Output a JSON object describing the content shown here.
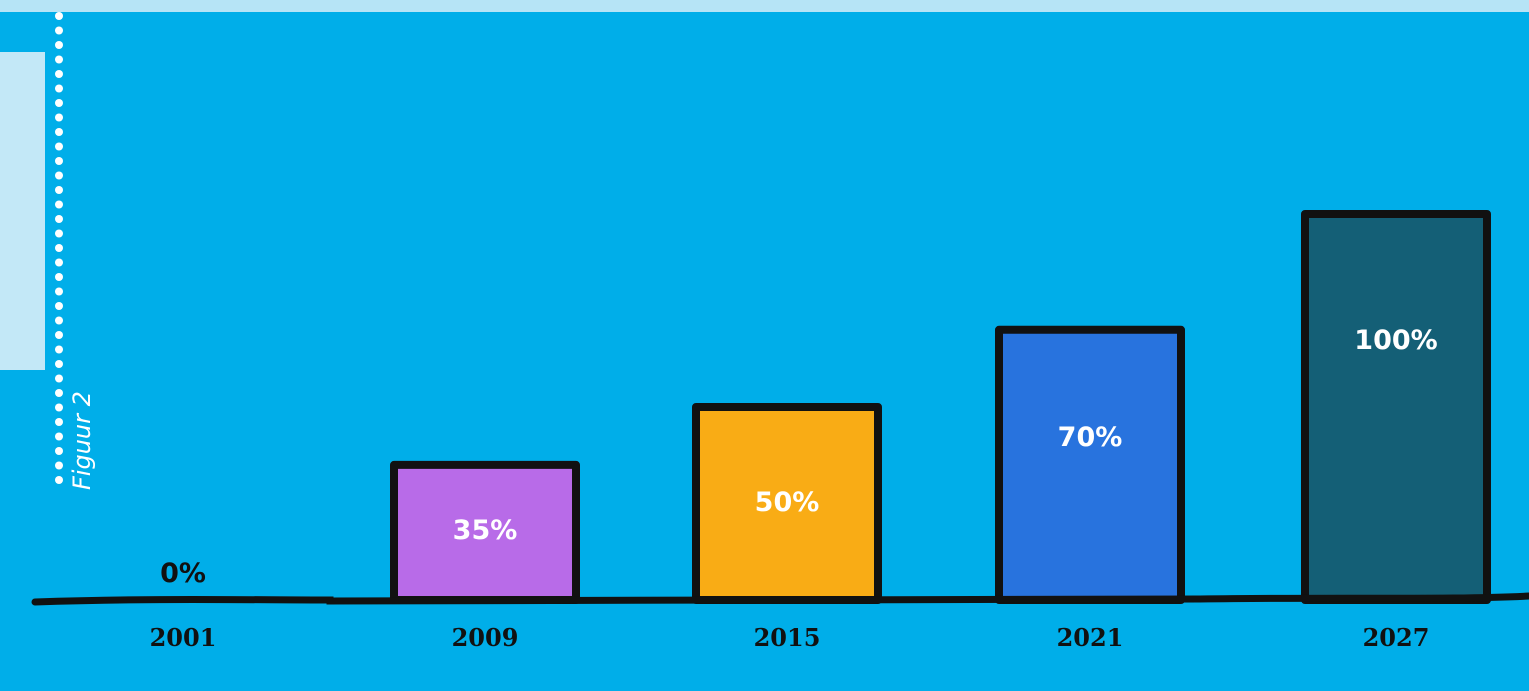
{
  "figure_label": "Figuur 2",
  "chart_data": {
    "type": "bar",
    "categories": [
      "2001",
      "2009",
      "2015",
      "2021",
      "2027"
    ],
    "values": [
      0,
      35,
      50,
      70,
      100
    ],
    "value_labels": [
      "0%",
      "35%",
      "50%",
      "70%",
      "100%"
    ],
    "ylim": [
      0,
      100
    ],
    "title": "",
    "xlabel": "",
    "ylabel": "",
    "grid": false,
    "colors": [
      "#00aee9",
      "#b86be8",
      "#f9ac15",
      "#2873de",
      "#145f76"
    ],
    "axis_color": "#111111",
    "background": "#00aee9"
  }
}
